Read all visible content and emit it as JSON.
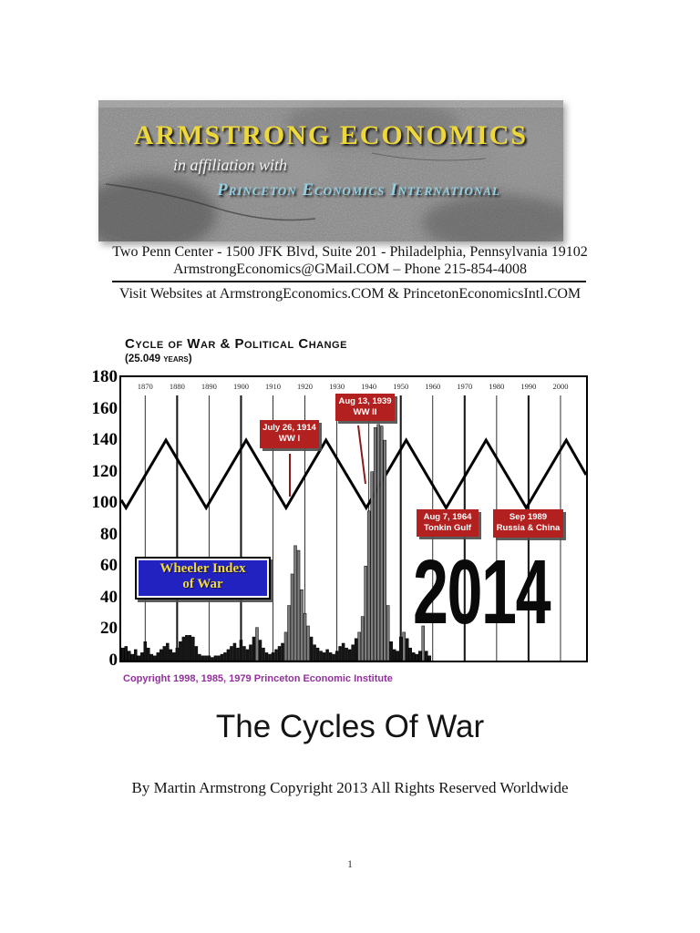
{
  "colors": {
    "annotation_red": "#b32020",
    "legend_blue": "#2222c0",
    "logo_yellow": "#eed73b",
    "logo_light_blue": "#93d0e2",
    "copyright_purple": "#93309e"
  },
  "header": {
    "logo": {
      "title": "ARMSTRONG ECONOMICS",
      "affiliation_prefix": "in affiliation with",
      "affiliate": "Princeton Economics International"
    },
    "address_line": "Two Penn Center - 1500 JFK Blvd, Suite 201 - Philadelphia, Pennsylvania 19102",
    "contact_line": "ArmstrongEconomics@GMail.COM – Phone 215-854-4008",
    "websites_line": "Visit Websites at ArmstrongEconomics.COM & PrincetonEconomicsIntl.COM"
  },
  "chart_data": {
    "type": "line+bar",
    "title": "Cycle of War & Political Change",
    "subtitle": "(25.049 years)",
    "copyright": "Copyright 1998, 1985, 1979 Princeton Economic Institute",
    "big_label": "2014",
    "legend": {
      "line1": "Wheeler Index",
      "line2": "of War"
    },
    "x_range": [
      1862.5,
      2008
    ],
    "ylim": [
      0,
      180
    ],
    "y_ticks": [
      180,
      160,
      140,
      120,
      100,
      80,
      60,
      40,
      20,
      0
    ],
    "x_ticks": [
      1870,
      1880,
      1890,
      1900,
      1910,
      1920,
      1930,
      1940,
      1950,
      1960,
      1970,
      1980,
      1990,
      2000
    ],
    "thick_gridlines": [
      1880,
      1900,
      1950,
      1970,
      1990
    ],
    "series": [
      {
        "name": "25.049-year war cycle",
        "type": "line",
        "points": [
          [
            1862.5,
            102
          ],
          [
            1864,
            97
          ],
          [
            1876.5,
            140
          ],
          [
            1889.1,
            97
          ],
          [
            1901.6,
            140
          ],
          [
            1914.1,
            97
          ],
          [
            1926.6,
            140
          ],
          [
            1939.2,
            97
          ],
          [
            1951.7,
            140
          ],
          [
            1964.2,
            97
          ],
          [
            1976.7,
            140
          ],
          [
            1989.3,
            97
          ],
          [
            2001.8,
            140
          ],
          [
            2008,
            118
          ]
        ]
      },
      {
        "name": "Wheeler Index of War",
        "type": "bar",
        "start_year": 1863,
        "values": [
          8,
          9,
          6,
          4,
          7,
          3,
          5,
          12,
          8,
          4,
          3,
          5,
          7,
          9,
          11,
          7,
          5,
          8,
          12,
          15,
          16,
          16,
          15,
          9,
          4,
          3,
          3,
          3,
          2,
          3,
          3,
          4,
          5,
          7,
          9,
          11,
          8,
          13,
          9,
          7,
          10,
          15,
          21,
          13,
          8,
          5,
          4,
          5,
          7,
          9,
          11,
          18,
          35,
          55,
          73,
          70,
          45,
          30,
          22,
          15,
          10,
          8,
          6,
          5,
          7,
          5,
          4,
          6,
          9,
          11,
          8,
          7,
          10,
          14,
          18,
          28,
          60,
          95,
          120,
          148,
          150,
          149,
          140,
          35,
          12,
          7,
          6,
          15,
          18,
          14,
          8,
          5,
          4,
          6,
          22,
          6,
          3
        ]
      }
    ],
    "annotations": [
      {
        "line1": "July 26, 1914",
        "line2": "WW I"
      },
      {
        "line1": "Aug 13, 1939",
        "line2": "WW II"
      },
      {
        "line1": "Aug 7, 1964",
        "line2": "Tonkin Gulf"
      },
      {
        "line1": "Sep 1989",
        "line2": "Russia & China"
      }
    ]
  },
  "document": {
    "title": "The Cycles Of War",
    "byline": "By Martin Armstrong Copyright 2013 All Rights Reserved Worldwide",
    "page_number": "1"
  }
}
